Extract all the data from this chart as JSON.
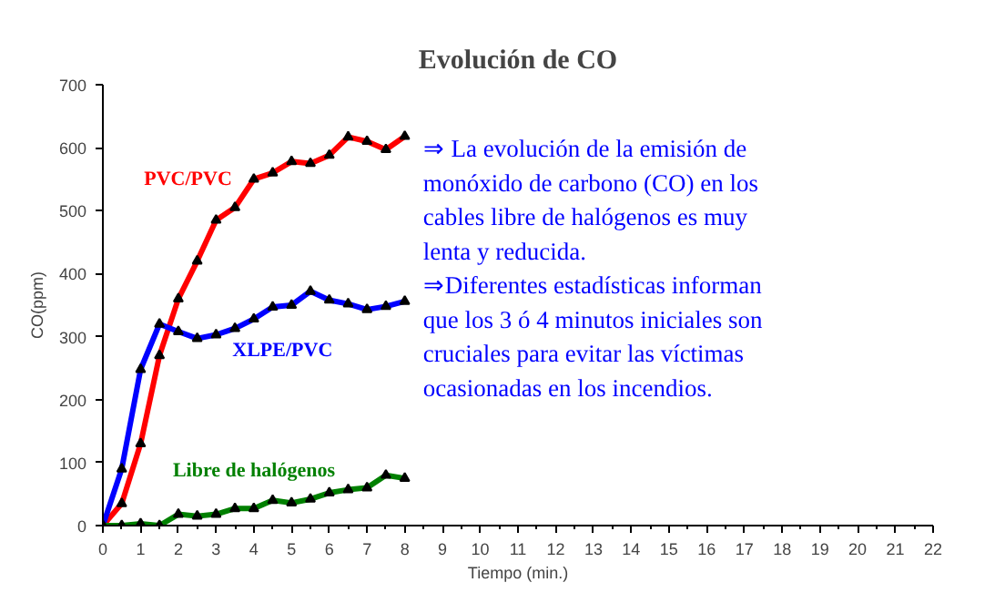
{
  "chart_data": {
    "type": "line",
    "title": "Evolución de CO",
    "xlabel": "Tiempo (min.)",
    "ylabel": "CO(ppm)",
    "x": [
      0,
      0.5,
      1,
      1.5,
      2,
      2.5,
      3,
      3.5,
      4,
      4.5,
      5,
      5.5,
      6,
      6.5,
      7,
      7.5,
      8
    ],
    "series": [
      {
        "name": "PVC/PVC",
        "color": "#ff0000",
        "values": [
          0,
          35,
          130,
          270,
          360,
          420,
          485,
          505,
          550,
          560,
          578,
          575,
          588,
          617,
          610,
          597,
          618
        ]
      },
      {
        "name": "XLPE/PVC",
        "color": "#0000ff",
        "values": [
          0,
          90,
          248,
          320,
          308,
          297,
          303,
          313,
          328,
          347,
          350,
          372,
          358,
          352,
          343,
          348,
          356
        ]
      },
      {
        "name": "Libre de halógenos",
        "color": "#008000",
        "values": [
          0,
          0,
          3,
          0,
          18,
          15,
          18,
          27,
          27,
          40,
          36,
          42,
          52,
          57,
          60,
          80,
          75
        ]
      }
    ],
    "xlim": [
      0,
      22
    ],
    "ylim": [
      0,
      700
    ],
    "xticks": [
      0,
      1,
      2,
      3,
      4,
      5,
      6,
      7,
      8,
      9,
      10,
      11,
      12,
      13,
      14,
      15,
      16,
      17,
      18,
      19,
      20,
      21,
      22
    ],
    "yticks": [
      0,
      100,
      200,
      300,
      400,
      500,
      600,
      700
    ],
    "marker": "triangle",
    "grid": false,
    "annotations": [
      "⇒ La evolución de la emisión de\nmonóxido de carbono (CO) en los\ncables libre de halógenos es muy\nlenta y reducida.\n⇒Diferentes estadísticas informan\nque los 3 ó 4 minutos iniciales son\ncruciales para evitar las víctimas\nocasionadas en los incendios."
    ]
  }
}
